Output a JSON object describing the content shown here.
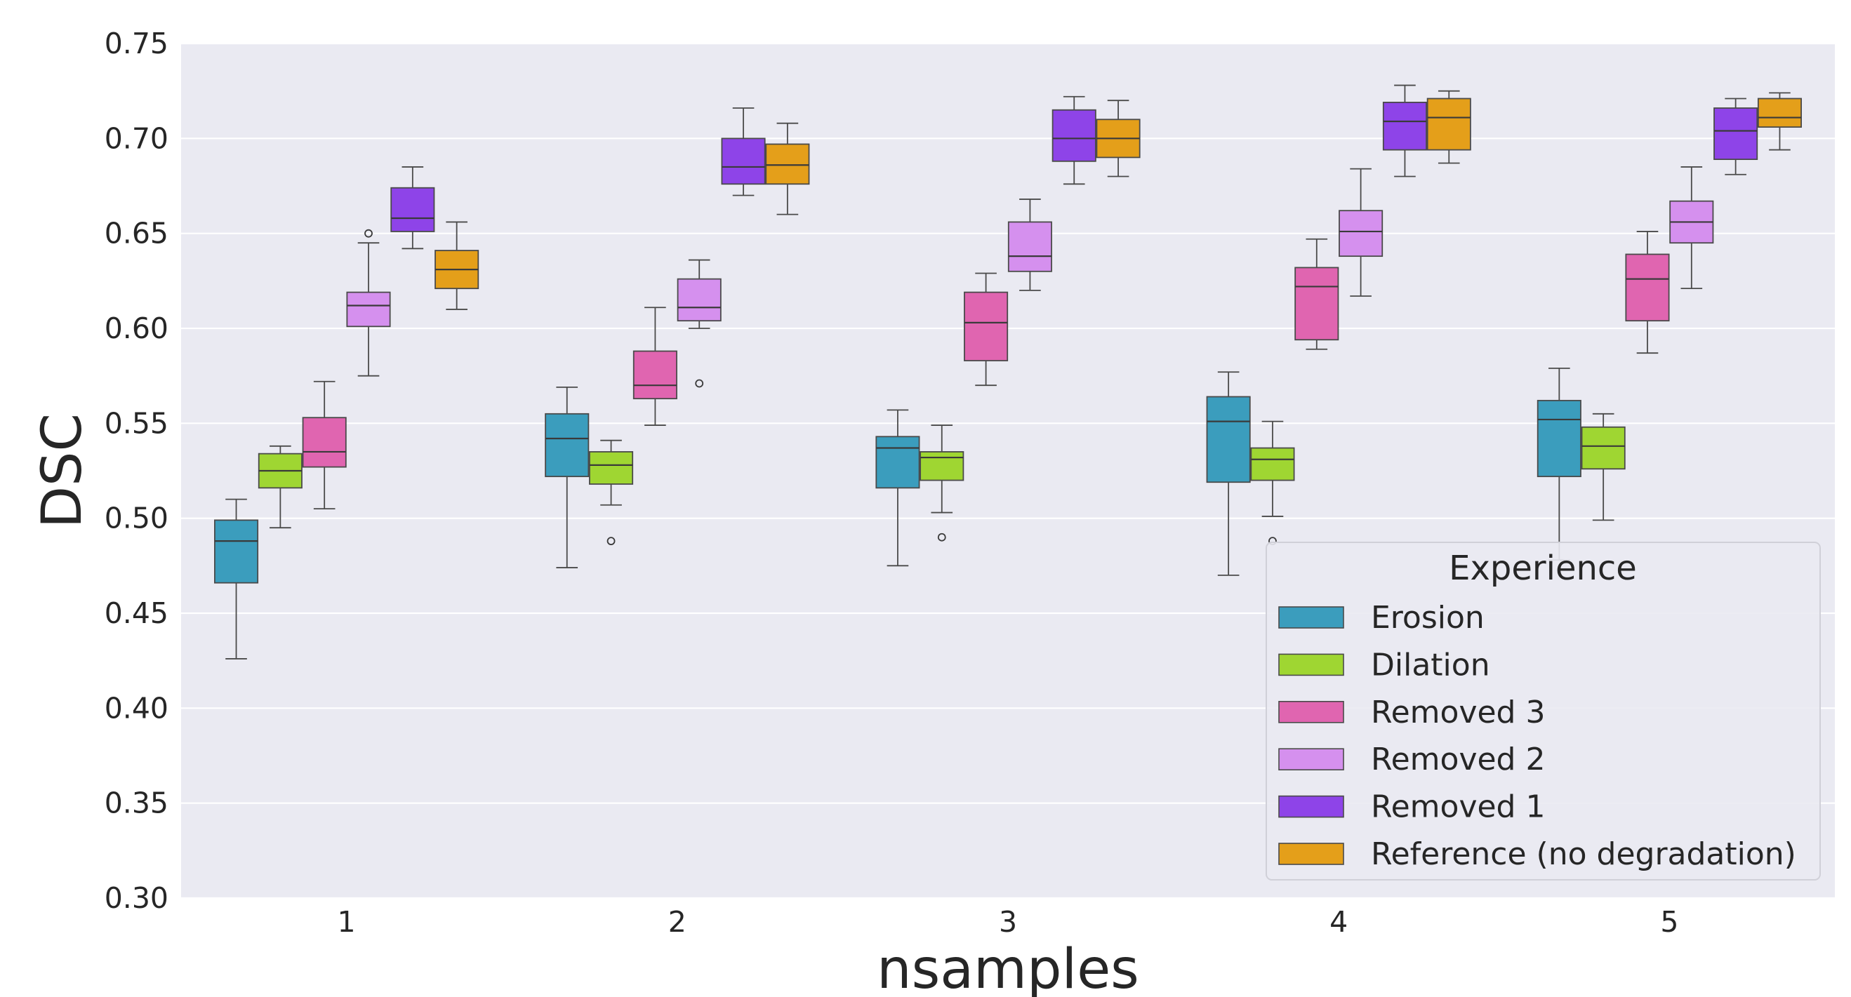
{
  "chart_data": {
    "type": "box",
    "xlabel": "nsamples",
    "ylabel": "DSC",
    "ylim": [
      0.3,
      0.75
    ],
    "yticks": [
      "0.30",
      "0.35",
      "0.40",
      "0.45",
      "0.50",
      "0.55",
      "0.60",
      "0.65",
      "0.70",
      "0.75"
    ],
    "categories": [
      "1",
      "2",
      "3",
      "4",
      "5"
    ],
    "grid": true,
    "legend": {
      "title": "Experience",
      "position": "lower-right"
    },
    "series": [
      {
        "name": "Erosion",
        "color": "#3b9dbd",
        "boxes": [
          {
            "whislo": 0.426,
            "q1": 0.466,
            "med": 0.488,
            "q3": 0.499,
            "whishi": 0.51,
            "fliers": []
          },
          {
            "whislo": 0.474,
            "q1": 0.522,
            "med": 0.542,
            "q3": 0.555,
            "whishi": 0.569,
            "fliers": []
          },
          {
            "whislo": 0.475,
            "q1": 0.516,
            "med": 0.537,
            "q3": 0.543,
            "whishi": 0.557,
            "fliers": []
          },
          {
            "whislo": 0.47,
            "q1": 0.519,
            "med": 0.551,
            "q3": 0.564,
            "whishi": 0.577,
            "fliers": []
          },
          {
            "whislo": 0.478,
            "q1": 0.522,
            "med": 0.552,
            "q3": 0.562,
            "whishi": 0.579,
            "fliers": []
          }
        ]
      },
      {
        "name": "Dilation",
        "color": "#9fd632",
        "boxes": [
          {
            "whislo": 0.495,
            "q1": 0.516,
            "med": 0.525,
            "q3": 0.534,
            "whishi": 0.538,
            "fliers": []
          },
          {
            "whislo": 0.507,
            "q1": 0.518,
            "med": 0.528,
            "q3": 0.535,
            "whishi": 0.541,
            "fliers": [
              0.488
            ]
          },
          {
            "whislo": 0.503,
            "q1": 0.52,
            "med": 0.532,
            "q3": 0.535,
            "whishi": 0.549,
            "fliers": [
              0.49
            ]
          },
          {
            "whislo": 0.501,
            "q1": 0.52,
            "med": 0.531,
            "q3": 0.537,
            "whishi": 0.551,
            "fliers": [
              0.488
            ]
          },
          {
            "whislo": 0.499,
            "q1": 0.526,
            "med": 0.538,
            "q3": 0.548,
            "whishi": 0.555,
            "fliers": []
          }
        ]
      },
      {
        "name": "Removed 3",
        "color": "#e065b0",
        "boxes": [
          {
            "whislo": 0.505,
            "q1": 0.527,
            "med": 0.535,
            "q3": 0.553,
            "whishi": 0.572,
            "fliers": []
          },
          {
            "whislo": 0.549,
            "q1": 0.563,
            "med": 0.57,
            "q3": 0.588,
            "whishi": 0.611,
            "fliers": []
          },
          {
            "whislo": 0.57,
            "q1": 0.583,
            "med": 0.603,
            "q3": 0.619,
            "whishi": 0.629,
            "fliers": []
          },
          {
            "whislo": 0.589,
            "q1": 0.594,
            "med": 0.622,
            "q3": 0.632,
            "whishi": 0.647,
            "fliers": []
          },
          {
            "whislo": 0.587,
            "q1": 0.604,
            "med": 0.626,
            "q3": 0.639,
            "whishi": 0.651,
            "fliers": []
          }
        ]
      },
      {
        "name": "Removed 2",
        "color": "#d590ee",
        "boxes": [
          {
            "whislo": 0.575,
            "q1": 0.601,
            "med": 0.612,
            "q3": 0.619,
            "whishi": 0.645,
            "fliers": [
              0.65
            ]
          },
          {
            "whislo": 0.6,
            "q1": 0.604,
            "med": 0.611,
            "q3": 0.626,
            "whishi": 0.636,
            "fliers": [
              0.571
            ]
          },
          {
            "whislo": 0.62,
            "q1": 0.63,
            "med": 0.638,
            "q3": 0.656,
            "whishi": 0.668,
            "fliers": []
          },
          {
            "whislo": 0.617,
            "q1": 0.638,
            "med": 0.651,
            "q3": 0.662,
            "whishi": 0.684,
            "fliers": []
          },
          {
            "whislo": 0.621,
            "q1": 0.645,
            "med": 0.656,
            "q3": 0.667,
            "whishi": 0.685,
            "fliers": []
          }
        ]
      },
      {
        "name": "Removed 1",
        "color": "#8e44e8",
        "boxes": [
          {
            "whislo": 0.642,
            "q1": 0.651,
            "med": 0.658,
            "q3": 0.674,
            "whishi": 0.685,
            "fliers": []
          },
          {
            "whislo": 0.67,
            "q1": 0.676,
            "med": 0.685,
            "q3": 0.7,
            "whishi": 0.716,
            "fliers": []
          },
          {
            "whislo": 0.676,
            "q1": 0.688,
            "med": 0.7,
            "q3": 0.715,
            "whishi": 0.722,
            "fliers": []
          },
          {
            "whislo": 0.68,
            "q1": 0.694,
            "med": 0.709,
            "q3": 0.719,
            "whishi": 0.728,
            "fliers": []
          },
          {
            "whislo": 0.681,
            "q1": 0.689,
            "med": 0.704,
            "q3": 0.716,
            "whishi": 0.721,
            "fliers": []
          }
        ]
      },
      {
        "name": "Reference (no degradation)",
        "color": "#e49f1a",
        "boxes": [
          {
            "whislo": 0.61,
            "q1": 0.621,
            "med": 0.631,
            "q3": 0.641,
            "whishi": 0.656,
            "fliers": []
          },
          {
            "whislo": 0.66,
            "q1": 0.676,
            "med": 0.686,
            "q3": 0.697,
            "whishi": 0.708,
            "fliers": []
          },
          {
            "whislo": 0.68,
            "q1": 0.69,
            "med": 0.7,
            "q3": 0.71,
            "whishi": 0.72,
            "fliers": []
          },
          {
            "whislo": 0.687,
            "q1": 0.694,
            "med": 0.711,
            "q3": 0.721,
            "whishi": 0.725,
            "fliers": []
          },
          {
            "whislo": 0.694,
            "q1": 0.706,
            "med": 0.711,
            "q3": 0.721,
            "whishi": 0.724,
            "fliers": []
          }
        ]
      }
    ]
  }
}
